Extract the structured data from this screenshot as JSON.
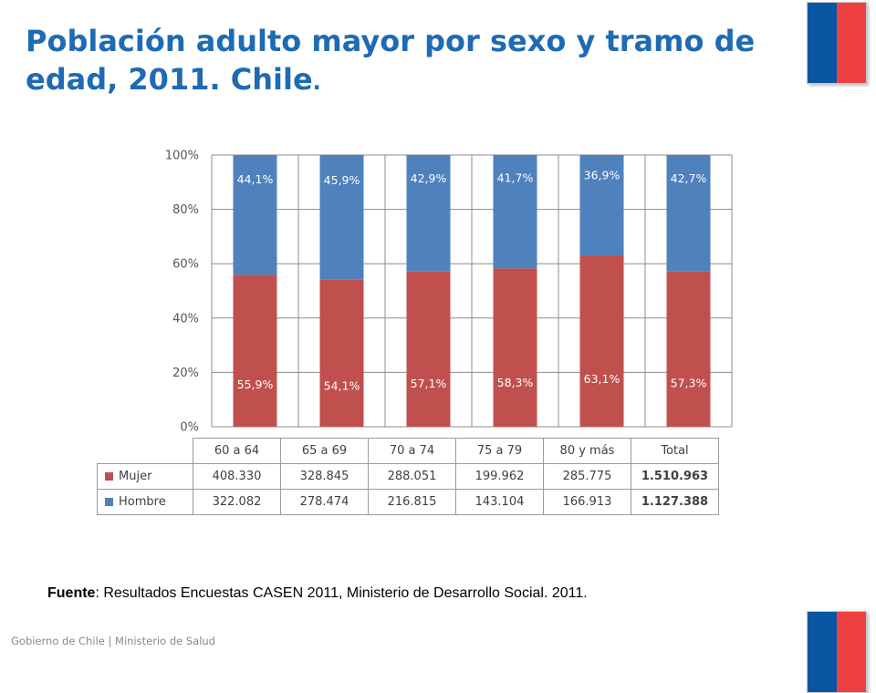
{
  "slide": {
    "title": "Población adulto mayor por sexo y tramo de edad, 2011. Chile",
    "title_dot": ".",
    "source_label": "Fuente",
    "source_text": ": Resultados Encuestas CASEN 2011, Ministerio de Desarrollo Social. 2011.",
    "footer": "Gobierno de Chile | Ministerio de Salud"
  },
  "chart_data": {
    "type": "bar",
    "stacked": true,
    "percent": true,
    "categories": [
      "60 a 64",
      "65 a 69",
      "70 a 74",
      "75 a 79",
      "80 y más",
      "Total"
    ],
    "series": [
      {
        "name": "Mujer",
        "color": "#c0504d",
        "values": [
          55.9,
          54.1,
          57.1,
          58.3,
          63.1,
          57.3
        ],
        "labels": [
          "55,9%",
          "54,1%",
          "57,1%",
          "58,3%",
          "63,1%",
          "57,3%"
        ],
        "counts": [
          "408.330",
          "328.845",
          "288.051",
          "199.962",
          "285.775",
          "1.510.963"
        ]
      },
      {
        "name": "Hombre",
        "color": "#4f81bd",
        "values": [
          44.1,
          45.9,
          42.9,
          41.7,
          36.9,
          42.7
        ],
        "labels": [
          "44,1%",
          "45,9%",
          "42,9%",
          "41,7%",
          "36,9%",
          "42,7%"
        ],
        "counts": [
          "322.082",
          "278.474",
          "216.815",
          "143.104",
          "166.913",
          "1.127.388"
        ]
      }
    ],
    "yticks": [
      "0%",
      "20%",
      "40%",
      "60%",
      "80%",
      "100%"
    ],
    "ylim": [
      0,
      100
    ],
    "grid": true,
    "legend": "data-table"
  }
}
